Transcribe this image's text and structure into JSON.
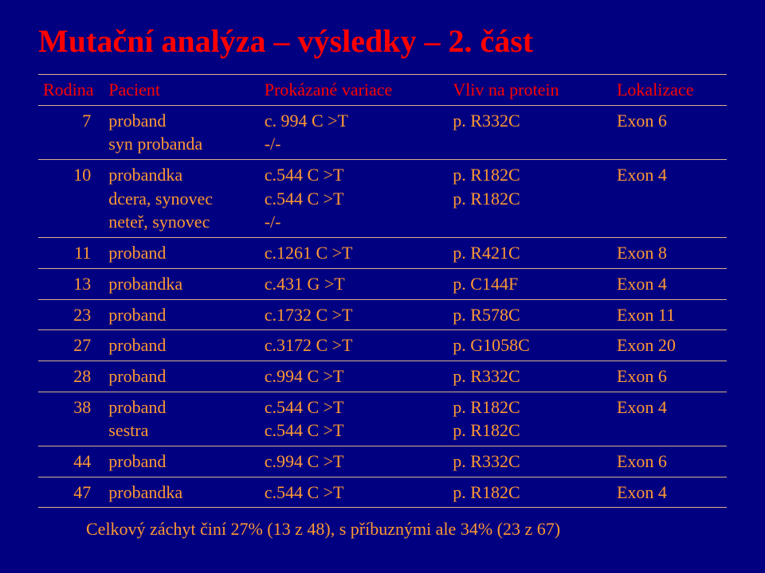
{
  "colors": {
    "background": "#000080",
    "title": "#ff0000",
    "header": "#ff0000",
    "body": "#ff9933",
    "border": "#d9b38c"
  },
  "title": "Mutační analýza – výsledky – 2. část",
  "columns": [
    "Rodina",
    "Pacient",
    "Prokázané variace",
    "Vliv na protein",
    "Lokalizace"
  ],
  "rows": [
    {
      "rodina": "7",
      "pacient": [
        "proband",
        "syn probanda"
      ],
      "variace": [
        "c. 994 C >T",
        "-/-"
      ],
      "protein": [
        "p. R332C"
      ],
      "lokalizace": "Exon 6"
    },
    {
      "rodina": "10",
      "pacient": [
        "probandka",
        "dcera, synovec",
        "neteř, synovec"
      ],
      "variace": [
        "c.544 C >T",
        "c.544 C >T",
        "-/-"
      ],
      "protein": [
        "p. R182C",
        "p. R182C"
      ],
      "lokalizace": "Exon 4"
    },
    {
      "rodina": "11",
      "pacient": [
        "proband"
      ],
      "variace": [
        "c.1261 C >T"
      ],
      "protein": [
        "p. R421C"
      ],
      "lokalizace": "Exon 8"
    },
    {
      "rodina": "13",
      "pacient": [
        "probandka"
      ],
      "variace": [
        "c.431 G >T"
      ],
      "protein": [
        "p. C144F"
      ],
      "lokalizace": "Exon 4"
    },
    {
      "rodina": "23",
      "pacient": [
        "proband"
      ],
      "variace": [
        "c.1732 C >T"
      ],
      "protein": [
        "p. R578C"
      ],
      "lokalizace": "Exon 11"
    },
    {
      "rodina": "27",
      "pacient": [
        "proband"
      ],
      "variace": [
        "c.3172 C >T"
      ],
      "protein": [
        "p. G1058C"
      ],
      "lokalizace": "Exon 20"
    },
    {
      "rodina": "28",
      "pacient": [
        "proband"
      ],
      "variace": [
        "c.994 C >T"
      ],
      "protein": [
        "p. R332C"
      ],
      "lokalizace": "Exon 6"
    },
    {
      "rodina": "38",
      "pacient": [
        "proband",
        "sestra"
      ],
      "variace": [
        "c.544 C >T",
        "c.544 C >T"
      ],
      "protein": [
        "p. R182C",
        "p. R182C"
      ],
      "lokalizace": "Exon 4"
    },
    {
      "rodina": "44",
      "pacient": [
        "proband"
      ],
      "variace": [
        "c.994 C >T"
      ],
      "protein": [
        "p. R332C"
      ],
      "lokalizace": "Exon 6"
    },
    {
      "rodina": "47",
      "pacient": [
        "probandka"
      ],
      "variace": [
        "c.544 C >T"
      ],
      "protein": [
        "p. R182C"
      ],
      "lokalizace": "Exon 4"
    }
  ],
  "footer": "Celkový záchyt činí 27% (13 z 48), s příbuznými ale 34% (23 z 67)"
}
